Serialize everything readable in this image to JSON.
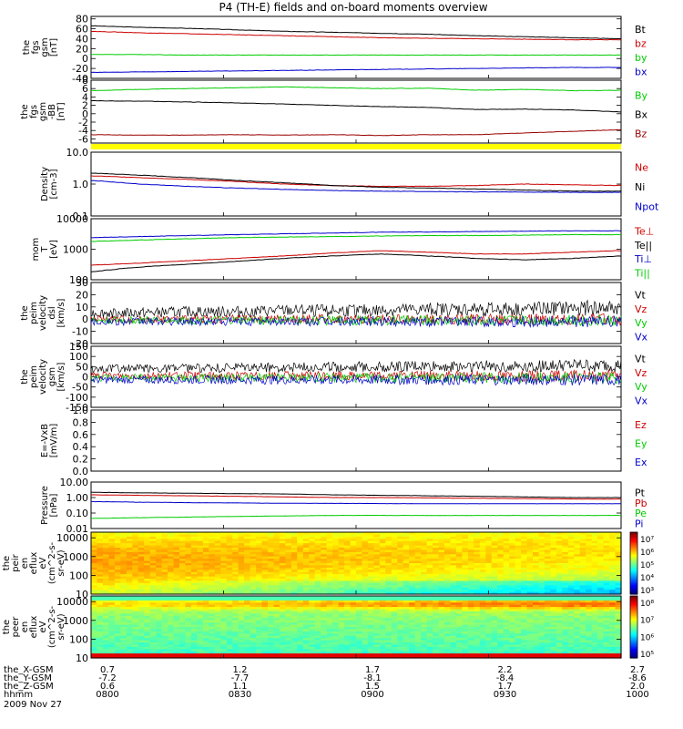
{
  "title": "P4 (TH-E) fields and on-board moments overview",
  "colors": {
    "black": "#000000",
    "red": "#cc0000",
    "green": "#00cc00",
    "blue": "#0000cc",
    "dark_red": "#990000",
    "yellow": "#ffff00"
  },
  "chart_data": [
    {
      "type": "line",
      "ylabel": [
        "the",
        "fgs",
        "gsm",
        "[nT]"
      ],
      "yticks": [
        "80",
        "60",
        "40",
        "20",
        "0",
        "-20",
        "-40"
      ],
      "ylim": [
        -40,
        85
      ],
      "series": [
        {
          "name": "Bt",
          "color": "#000000",
          "y": [
            66,
            63,
            61,
            58,
            55,
            53,
            51,
            49,
            46,
            44,
            42,
            40
          ]
        },
        {
          "name": "bz",
          "color": "#cc0000",
          "y": [
            55,
            52,
            50,
            48,
            46,
            44,
            42,
            41,
            40,
            39,
            38,
            38
          ]
        },
        {
          "name": "by",
          "color": "#00cc00",
          "y": [
            8,
            8,
            7,
            7,
            7,
            7,
            7,
            7,
            7,
            7,
            7,
            7
          ]
        },
        {
          "name": "bx",
          "color": "#0000cc",
          "y": [
            -28,
            -27,
            -26,
            -25,
            -24,
            -23,
            -22,
            -21,
            -20,
            -19,
            -18,
            -18
          ]
        }
      ]
    },
    {
      "type": "line",
      "ylabel": [
        "the",
        "fgs",
        "gsm",
        "-BB",
        "[nT]"
      ],
      "yticks": [
        "8",
        "6",
        "4",
        "2",
        "0",
        "-2",
        "-4",
        "-6"
      ],
      "ylim": [
        -7,
        8
      ],
      "series": [
        {
          "name": "By",
          "color": "#00cc00",
          "y": [
            5.5,
            5.8,
            6.0,
            6.2,
            6.4,
            6.2,
            6.0,
            6.1,
            5.6,
            5.8,
            5.5,
            5.6
          ]
        },
        {
          "name": "Bx",
          "color": "#000000",
          "y": [
            3.1,
            3.0,
            2.8,
            2.6,
            2.3,
            2.0,
            1.7,
            1.5,
            1.0,
            1.1,
            0.9,
            0.4
          ]
        },
        {
          "name": "Bz",
          "color": "#990000",
          "y": [
            -5.0,
            -5.1,
            -5.1,
            -5.0,
            -5.1,
            -5.0,
            -5.2,
            -5.0,
            -5.0,
            -4.6,
            -4.2,
            -3.8
          ]
        }
      ]
    },
    {
      "type": "line",
      "log": true,
      "ylabel": [
        "Density",
        "[cm-3]"
      ],
      "yticks": [
        "10.0",
        "1.0",
        "0.1"
      ],
      "ylim": [
        0.1,
        10
      ],
      "series": [
        {
          "name": "Ne",
          "color": "#cc0000",
          "y": [
            1.8,
            1.6,
            1.4,
            1.2,
            1.0,
            0.9,
            0.85,
            0.85,
            0.9,
            1.0,
            0.95,
            0.9
          ]
        },
        {
          "name": "Ni",
          "color": "#000000",
          "y": [
            2.2,
            1.9,
            1.6,
            1.3,
            1.1,
            0.9,
            0.8,
            0.75,
            0.7,
            0.65,
            0.6,
            0.6
          ]
        },
        {
          "name": "Npot",
          "color": "#0000cc",
          "y": [
            1.3,
            1.0,
            0.85,
            0.75,
            0.68,
            0.63,
            0.6,
            0.58,
            0.57,
            0.56,
            0.55,
            0.55
          ]
        }
      ]
    },
    {
      "type": "line",
      "log": true,
      "ylabel": [
        "mom",
        "T",
        "[eV]"
      ],
      "yticks": [
        "10000",
        "1000",
        "100"
      ],
      "ylim": [
        100,
        10000
      ],
      "series": [
        {
          "name": "Te⊥",
          "color": "#cc0000",
          "y": [
            300,
            350,
            420,
            500,
            600,
            750,
            900,
            800,
            700,
            700,
            800,
            900
          ]
        },
        {
          "name": "Te||",
          "color": "#000000",
          "y": [
            180,
            260,
            320,
            400,
            500,
            600,
            700,
            600,
            500,
            450,
            500,
            600
          ]
        },
        {
          "name": "Ti⊥",
          "color": "#0000cc",
          "y": [
            2400,
            2600,
            2800,
            3000,
            3200,
            3400,
            3600,
            3700,
            3800,
            3900,
            4000,
            4000
          ]
        },
        {
          "name": "Ti||",
          "color": "#00cc00",
          "y": [
            1800,
            2000,
            2200,
            2400,
            2500,
            2600,
            2700,
            2800,
            2800,
            2900,
            3000,
            3000
          ]
        }
      ]
    },
    {
      "type": "line",
      "noisy": true,
      "ylabel": [
        "the",
        "peim",
        "velocity",
        "dsl",
        "[km/s]"
      ],
      "yticks": [
        "30",
        "20",
        "10",
        "0",
        "-10",
        "-20"
      ],
      "ylim": [
        -20,
        30
      ],
      "series": [
        {
          "name": "Vt",
          "color": "#000000",
          "y": [
            5,
            5,
            6,
            6,
            7,
            7,
            7,
            8,
            8,
            8,
            9,
            9
          ],
          "amp": 4
        },
        {
          "name": "Vz",
          "color": "#cc0000",
          "y": [
            0,
            0,
            0,
            0,
            0,
            0,
            0,
            0,
            0,
            0,
            0,
            0
          ],
          "amp": 3
        },
        {
          "name": "Vy",
          "color": "#00cc00",
          "y": [
            -1,
            -1,
            -1,
            -1,
            -1,
            -1,
            -1,
            -1,
            -1,
            -1,
            -1,
            -1
          ],
          "amp": 3
        },
        {
          "name": "Vx",
          "color": "#0000cc",
          "y": [
            -2,
            -2,
            -2,
            -2,
            -2,
            -2,
            -2,
            -2,
            -2,
            -2,
            -2,
            -2
          ],
          "amp": 3
        }
      ]
    },
    {
      "type": "line",
      "noisy": true,
      "ylabel": [
        "the",
        "peim",
        "velocity",
        "gsm",
        "[km/s]"
      ],
      "yticks": [
        "150",
        "100",
        "50",
        "0",
        "-50",
        "-100",
        "-150"
      ],
      "ylim": [
        -150,
        150
      ],
      "series": [
        {
          "name": "Vt",
          "color": "#000000",
          "y": [
            40,
            40,
            42,
            44,
            46,
            48,
            50,
            50,
            52,
            52,
            54,
            54
          ],
          "amp": 20
        },
        {
          "name": "Vz",
          "color": "#cc0000",
          "y": [
            5,
            5,
            5,
            5,
            5,
            5,
            5,
            5,
            5,
            5,
            5,
            5
          ],
          "amp": 18
        },
        {
          "name": "Vy",
          "color": "#00cc00",
          "y": [
            -5,
            -5,
            -5,
            -5,
            -5,
            -5,
            -5,
            -5,
            -5,
            -5,
            -5,
            -5
          ],
          "amp": 18
        },
        {
          "name": "Vx",
          "color": "#0000cc",
          "y": [
            -15,
            -15,
            -15,
            -15,
            -15,
            -15,
            -15,
            -15,
            -15,
            -15,
            -15,
            -15
          ],
          "amp": 18
        }
      ]
    },
    {
      "type": "line",
      "ylabel": [
        "E=-VxB",
        "[mV/m]"
      ],
      "yticks": [
        "1.0",
        "0.8",
        "0.6",
        "0.4",
        "0.2",
        "0.0"
      ],
      "ylim": [
        0,
        1
      ],
      "series": [
        {
          "name": "Ez",
          "color": "#cc0000",
          "y": []
        },
        {
          "name": "Ey",
          "color": "#00cc00",
          "y": []
        },
        {
          "name": "Ex",
          "color": "#0000cc",
          "y": []
        }
      ]
    },
    {
      "type": "line",
      "log": true,
      "ylabel": [
        "Pressure",
        "[nPa]"
      ],
      "yticks": [
        "10.00",
        "1.00",
        "0.10",
        "0.01"
      ],
      "ylim": [
        0.01,
        10
      ],
      "series": [
        {
          "name": "Pt",
          "color": "#000000",
          "y": [
            2.2,
            2.0,
            1.9,
            1.8,
            1.7,
            1.5,
            1.4,
            1.3,
            1.2,
            1.1,
            1.0,
            1.0
          ]
        },
        {
          "name": "Pb",
          "color": "#cc0000",
          "y": [
            1.5,
            1.4,
            1.3,
            1.2,
            1.1,
            1.0,
            1.0,
            0.95,
            0.9,
            0.85,
            0.8,
            0.8
          ]
        },
        {
          "name": "Pe",
          "color": "#00cc00",
          "y": [
            0.045,
            0.05,
            0.055,
            0.06,
            0.065,
            0.07,
            0.07,
            0.07,
            0.07,
            0.07,
            0.07,
            0.07
          ]
        },
        {
          "name": "Pi",
          "color": "#0000cc",
          "y": [
            0.55,
            0.5,
            0.47,
            0.45,
            0.43,
            0.42,
            0.41,
            0.4,
            0.4,
            0.4,
            0.4,
            0.4
          ]
        }
      ]
    },
    {
      "type": "heatmap",
      "log": true,
      "ylabel": [
        "the",
        "peir",
        "en",
        "eflux",
        "eV",
        "(cm^2-s-",
        "sr-eV)"
      ],
      "yticks": [
        "10000",
        "1000",
        "100",
        "10"
      ],
      "ylim": [
        10,
        20000
      ],
      "colorbar_ticks": [
        "10⁷",
        "10⁶",
        "10⁵",
        "10⁴",
        "10³"
      ],
      "variant": "ion"
    },
    {
      "type": "heatmap",
      "log": true,
      "ylabel": [
        "the",
        "peer",
        "en",
        "eflux",
        "eV",
        "(cm^2-s-",
        "sr-eV)"
      ],
      "yticks": [
        "10000",
        "1000",
        "100",
        "10"
      ],
      "ylim": [
        10,
        20000
      ],
      "colorbar_ticks": [
        "10⁸",
        "10⁷",
        "10⁶",
        "10⁵"
      ],
      "variant": "electron"
    }
  ],
  "x_axis": {
    "row_labels": [
      "the_X-GSM",
      "the_Y-GSM",
      "the_Z-GSM",
      "hhmm"
    ],
    "date": "2009 Nov 27",
    "columns": [
      {
        "x": "0.7",
        "y": "-7.2",
        "z": "0.6",
        "hhmm": "0800"
      },
      {
        "x": "1.2",
        "y": "-7.7",
        "z": "1.1",
        "hhmm": "0830"
      },
      {
        "x": "1.7",
        "y": "-8.1",
        "z": "1.5",
        "hhmm": "0900"
      },
      {
        "x": "2.2",
        "y": "-8.4",
        "z": "1.7",
        "hhmm": "0930"
      },
      {
        "x": "2.7",
        "y": "-8.6",
        "z": "2.0",
        "hhmm": "1000"
      }
    ]
  }
}
